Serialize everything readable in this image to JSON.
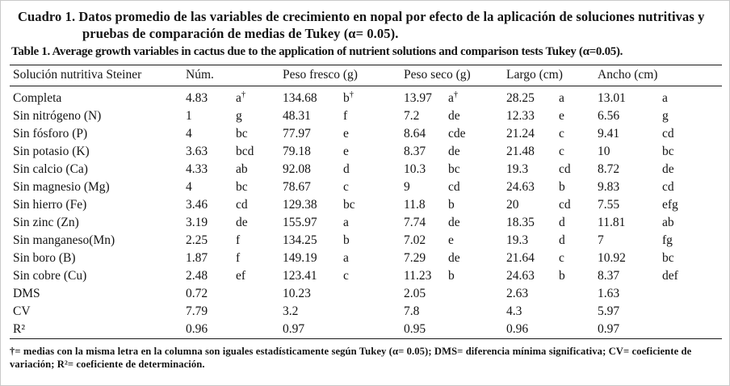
{
  "titles": {
    "spanish": "Cuadro 1. Datos promedio de las variables de crecimiento en nopal por efecto de la aplicación de soluciones nutritivas y pruebas de comparación de medias de Tukey (α= 0.05).",
    "english": "Table 1. Average growth variables in cactus due to the application of nutrient solutions and comparison tests Tukey (α=0.05)."
  },
  "table": {
    "columns": [
      "Solución nutritiva Steiner",
      "Núm.",
      "Peso fresco (g)",
      "Peso seco (g)",
      "Largo (cm)",
      "Ancho (cm)"
    ],
    "rows": [
      {
        "name": "Completa",
        "cells": [
          [
            "4.83",
            "a†"
          ],
          [
            "134.68",
            "b†"
          ],
          [
            "13.97",
            "a†"
          ],
          [
            "28.25",
            "a"
          ],
          [
            "13.01",
            "a"
          ]
        ]
      },
      {
        "name": "Sin nitrógeno (N)",
        "cells": [
          [
            "1",
            "g"
          ],
          [
            "48.31",
            "f"
          ],
          [
            "7.2",
            "de"
          ],
          [
            "12.33",
            "e"
          ],
          [
            "6.56",
            "g"
          ]
        ]
      },
      {
        "name": "Sin fósforo (P)",
        "cells": [
          [
            "4",
            "bc"
          ],
          [
            "77.97",
            "e"
          ],
          [
            "8.64",
            "cde"
          ],
          [
            "21.24",
            "c"
          ],
          [
            "9.41",
            "cd"
          ]
        ]
      },
      {
        "name": "Sin potasio (K)",
        "cells": [
          [
            "3.63",
            "bcd"
          ],
          [
            "79.18",
            "e"
          ],
          [
            "8.37",
            "de"
          ],
          [
            "21.48",
            "c"
          ],
          [
            "10",
            "bc"
          ]
        ]
      },
      {
        "name": "Sin calcio (Ca)",
        "cells": [
          [
            "4.33",
            "ab"
          ],
          [
            "92.08",
            "d"
          ],
          [
            "10.3",
            "bc"
          ],
          [
            "19.3",
            "cd"
          ],
          [
            "8.72",
            "de"
          ]
        ]
      },
      {
        "name": "Sin magnesio (Mg)",
        "cells": [
          [
            "4",
            "bc"
          ],
          [
            "78.67",
            "c"
          ],
          [
            "9",
            "cd"
          ],
          [
            "24.63",
            "b"
          ],
          [
            "9.83",
            "cd"
          ]
        ]
      },
      {
        "name": "Sin hierro (Fe)",
        "cells": [
          [
            "3.46",
            "cd"
          ],
          [
            "129.38",
            "bc"
          ],
          [
            "11.8",
            "b"
          ],
          [
            "20",
            "cd"
          ],
          [
            "7.55",
            "efg"
          ]
        ]
      },
      {
        "name": "Sin zinc (Zn)",
        "cells": [
          [
            "3.19",
            "de"
          ],
          [
            "155.97",
            "a"
          ],
          [
            "7.74",
            "de"
          ],
          [
            "18.35",
            "d"
          ],
          [
            "11.81",
            "ab"
          ]
        ]
      },
      {
        "name": "Sin manganeso(Mn)",
        "cells": [
          [
            "2.25",
            "f"
          ],
          [
            "134.25",
            "b"
          ],
          [
            "7.02",
            "e"
          ],
          [
            "19.3",
            "d"
          ],
          [
            "7",
            "fg"
          ]
        ]
      },
      {
        "name": "Sin boro (B)",
        "cells": [
          [
            "1.87",
            "f"
          ],
          [
            "149.19",
            "a"
          ],
          [
            "7.29",
            "de"
          ],
          [
            "21.64",
            "c"
          ],
          [
            "10.92",
            "bc"
          ]
        ]
      },
      {
        "name": "Sin cobre (Cu)",
        "cells": [
          [
            "2.48",
            "ef"
          ],
          [
            "123.41",
            "c"
          ],
          [
            "11.23",
            "b"
          ],
          [
            "24.63",
            "b"
          ],
          [
            "8.37",
            "def"
          ]
        ]
      },
      {
        "name": "DMS",
        "cells": [
          [
            "0.72",
            ""
          ],
          [
            "10.23",
            ""
          ],
          [
            "2.05",
            ""
          ],
          [
            "2.63",
            ""
          ],
          [
            "1.63",
            ""
          ]
        ]
      },
      {
        "name": "CV",
        "cells": [
          [
            "7.79",
            ""
          ],
          [
            "3.2",
            ""
          ],
          [
            "7.8",
            ""
          ],
          [
            "4.3",
            ""
          ],
          [
            "5.97",
            ""
          ]
        ]
      },
      {
        "name": "R²",
        "cells": [
          [
            "0.96",
            ""
          ],
          [
            "0.97",
            ""
          ],
          [
            "0.95",
            ""
          ],
          [
            "0.96",
            ""
          ],
          [
            "0.97",
            ""
          ]
        ]
      }
    ]
  },
  "footnote": "†= medias con la misma letra en la columna son iguales estadísticamente según Tukey (α= 0.05); DMS= diferencia mínima significativa; CV= coeficiente de variación; R²= coeficiente de determinación."
}
